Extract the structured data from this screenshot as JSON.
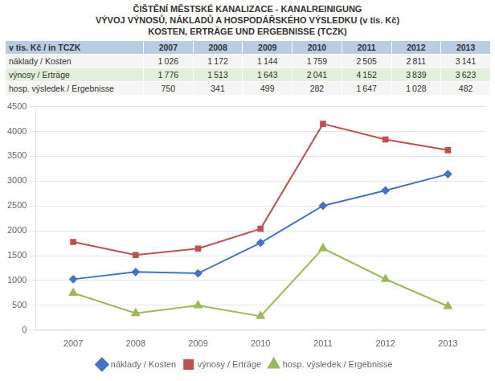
{
  "chart_data": {
    "type": "line",
    "title": [
      "ČIŠTĚNÍ MĚSTSKÉ KANALIZACE - KANALREINIGUNG",
      "VÝVOJ VÝNOSŮ, NÁKLADŮ A HOSPODÁŘSKÉHO VÝSLEDKU (v tis. Kč)",
      "KOSTEN, ERTRÄGE UND ERGEBNISSE (TCZK)"
    ],
    "table_header": "v tis. Kč / in TCZK",
    "x": [
      2007,
      2008,
      2009,
      2010,
      2011,
      2012,
      2013
    ],
    "xlim": [
      2006.4,
      2013.6
    ],
    "xticks": [
      2007,
      2008,
      2009,
      2010,
      2011,
      2012,
      2013
    ],
    "ylim": [
      0,
      4500
    ],
    "yticks": [
      0,
      500,
      1000,
      1500,
      2000,
      2500,
      3000,
      3500,
      4000,
      4500
    ],
    "grid": "y",
    "legend": "bottom",
    "series": [
      {
        "name": "náklady / Kosten",
        "color": "#4472c4",
        "marker": "diamond",
        "values": [
          1026,
          1172,
          1144,
          1759,
          2505,
          2811,
          3141
        ],
        "value_labels": [
          "1 026",
          "1 172",
          "1 144",
          "1 759",
          "2 505",
          "2 811",
          "3 141"
        ]
      },
      {
        "name": "výnosy / Erträge",
        "color": "#c0504d",
        "marker": "square",
        "values": [
          1776,
          1513,
          1643,
          2041,
          4152,
          3839,
          3623
        ],
        "value_labels": [
          "1 776",
          "1 513",
          "1 643",
          "2 041",
          "4 152",
          "3 839",
          "3 623"
        ]
      },
      {
        "name": "hosp. výsledek / Ergebnisse",
        "color": "#9bbb59",
        "marker": "triangle",
        "values": [
          750,
          341,
          499,
          282,
          1647,
          1028,
          482
        ],
        "value_labels": [
          "750",
          "341",
          "499",
          "282",
          "1 647",
          "1 028",
          "482"
        ]
      }
    ]
  }
}
